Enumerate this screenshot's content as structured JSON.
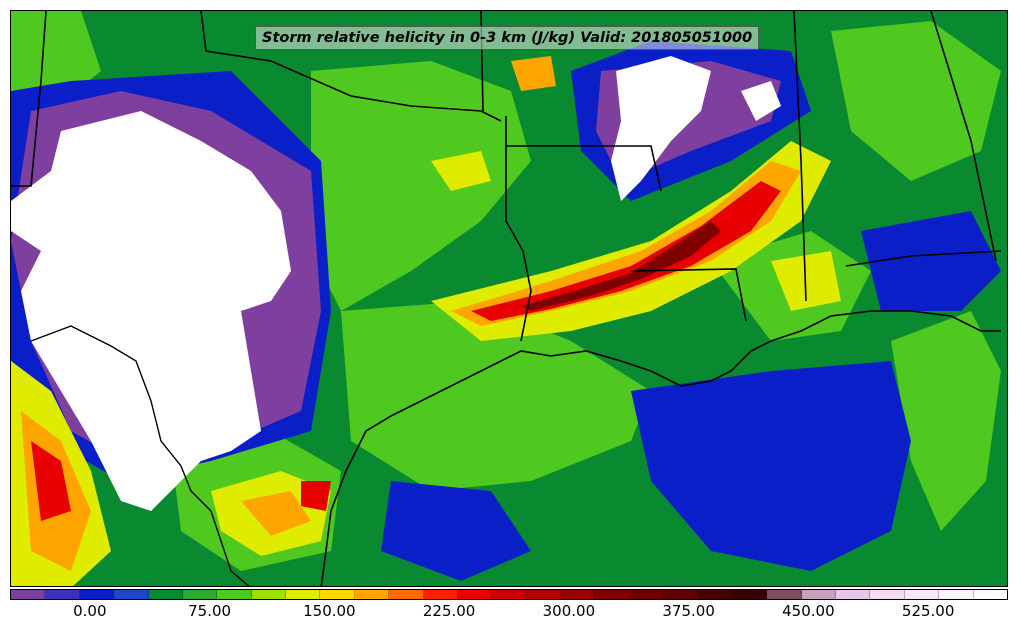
{
  "map": {
    "title": "Storm relative helicity in 0-3 km (J/kg) Valid: 201805051000"
  },
  "colorbar": {
    "colors": [
      "#7f3f9f",
      "#3f2fbf",
      "#0a1fc8",
      "#1f45c8",
      "#0a8a30",
      "#2fa82f",
      "#4fc81f",
      "#9fe000",
      "#dfec00",
      "#ffd700",
      "#ffa500",
      "#ff6a00",
      "#ff2000",
      "#e60000",
      "#cc0000",
      "#b30000",
      "#990000",
      "#800000",
      "#6e0000",
      "#5c0000",
      "#4a0000",
      "#380000",
      "#7f4f5f",
      "#c89fbf",
      "#e6c8e6",
      "#f5dcf5",
      "#f8e8f8",
      "#fcf4fc",
      "#ffffff"
    ],
    "tick_labels": [
      "0.00",
      "75.00",
      "150.00",
      "225.00",
      "300.00",
      "375.00",
      "450.00",
      "525.00"
    ],
    "tick_values": [
      0,
      75,
      150,
      225,
      300,
      375,
      450,
      525
    ],
    "range": [
      -50,
      575
    ]
  }
}
